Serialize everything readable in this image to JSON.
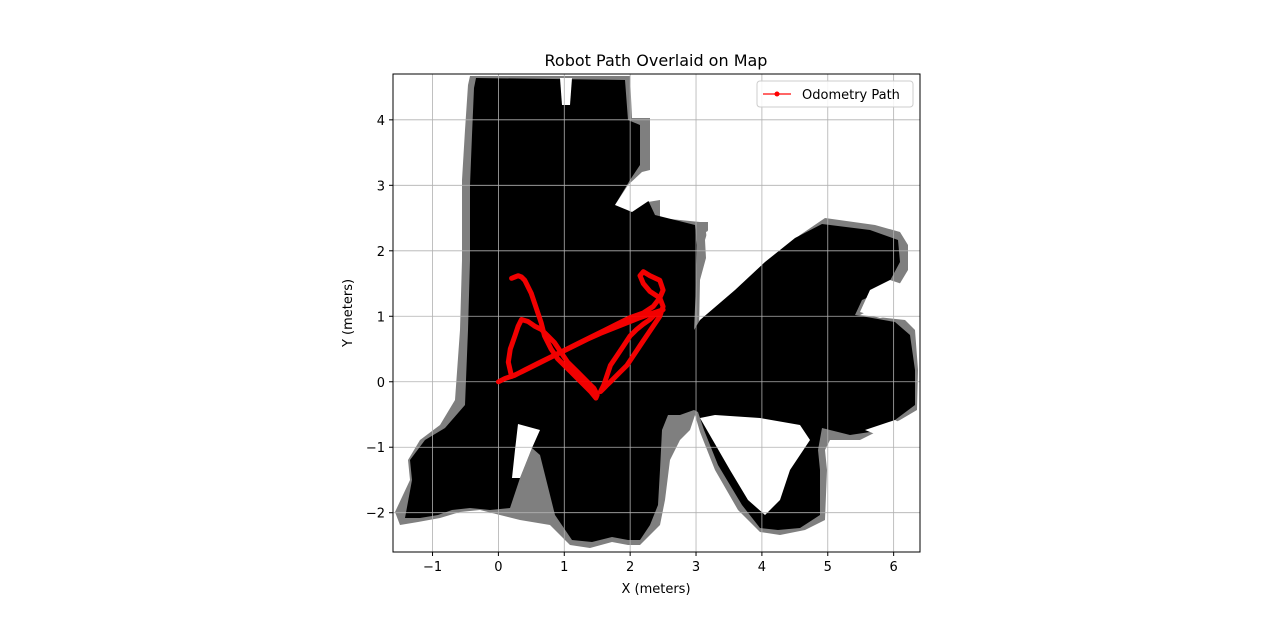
{
  "chart_data": {
    "type": "line",
    "title": "Robot Path Overlaid on Map",
    "xlabel": "X (meters)",
    "ylabel": "Y (meters)",
    "xlim": [
      -1.6,
      6.4
    ],
    "ylim": [
      -2.6,
      4.7
    ],
    "xticks": [
      -1,
      0,
      1,
      2,
      3,
      4,
      5,
      6
    ],
    "yticks": [
      -2,
      -1,
      0,
      1,
      2,
      3,
      4
    ],
    "grid": true,
    "legend_position": "top-right",
    "background_map": {
      "description": "occupancy grid",
      "colors": {
        "occupied": "#000000",
        "unknown": "#7f7f7f",
        "free": "#ffffff"
      }
    },
    "series": [
      {
        "name": "Odometry Path",
        "color": "#ff0000",
        "marker": "point",
        "x": [
          0.0,
          0.1,
          0.25,
          0.4,
          0.6,
          0.8,
          1.0,
          1.2,
          1.4,
          1.6,
          1.8,
          2.0,
          2.2,
          2.35,
          2.45,
          2.5,
          2.45,
          2.3,
          2.2,
          2.15,
          2.2,
          2.3,
          2.45,
          2.5,
          2.45,
          2.35,
          2.25,
          2.15,
          2.05,
          1.95,
          1.85,
          1.75,
          1.7,
          1.65,
          1.6,
          1.55,
          1.6,
          1.65,
          1.7,
          1.8,
          1.9,
          2.0,
          2.1,
          2.2,
          2.3,
          2.4,
          2.5,
          2.35,
          2.15,
          1.95,
          1.75,
          1.55,
          1.35,
          1.15,
          0.95,
          0.75,
          0.55,
          0.35,
          0.2,
          0.15,
          0.18,
          0.25,
          0.3,
          0.35,
          0.45,
          0.55,
          0.65,
          0.75,
          0.85,
          0.95,
          1.05,
          1.2,
          1.35,
          1.45,
          1.5,
          1.48,
          1.4,
          1.3,
          1.2,
          1.1,
          1.0,
          0.9,
          0.8,
          0.7,
          0.65,
          0.6,
          0.55,
          0.5,
          0.45,
          0.4,
          0.35,
          0.3,
          0.25,
          0.2
        ],
        "y": [
          0.0,
          0.05,
          0.1,
          0.18,
          0.28,
          0.38,
          0.48,
          0.58,
          0.68,
          0.78,
          0.88,
          0.98,
          1.05,
          1.15,
          1.28,
          1.4,
          1.55,
          1.62,
          1.68,
          1.62,
          1.5,
          1.38,
          1.28,
          1.15,
          1.0,
          0.85,
          0.7,
          0.55,
          0.4,
          0.25,
          0.15,
          0.05,
          0.0,
          -0.05,
          -0.1,
          -0.15,
          -0.05,
          0.1,
          0.25,
          0.4,
          0.55,
          0.7,
          0.8,
          0.88,
          0.95,
          1.05,
          1.1,
          1.05,
          0.98,
          0.9,
          0.82,
          0.74,
          0.65,
          0.55,
          0.45,
          0.35,
          0.25,
          0.15,
          0.08,
          0.3,
          0.5,
          0.7,
          0.85,
          0.95,
          0.92,
          0.85,
          0.8,
          0.7,
          0.6,
          0.45,
          0.3,
          0.15,
          0.0,
          -0.1,
          -0.2,
          -0.25,
          -0.15,
          -0.05,
          0.05,
          0.15,
          0.25,
          0.35,
          0.5,
          0.7,
          0.9,
          1.05,
          1.2,
          1.35,
          1.45,
          1.55,
          1.6,
          1.62,
          1.6,
          1.58
        ]
      }
    ]
  }
}
